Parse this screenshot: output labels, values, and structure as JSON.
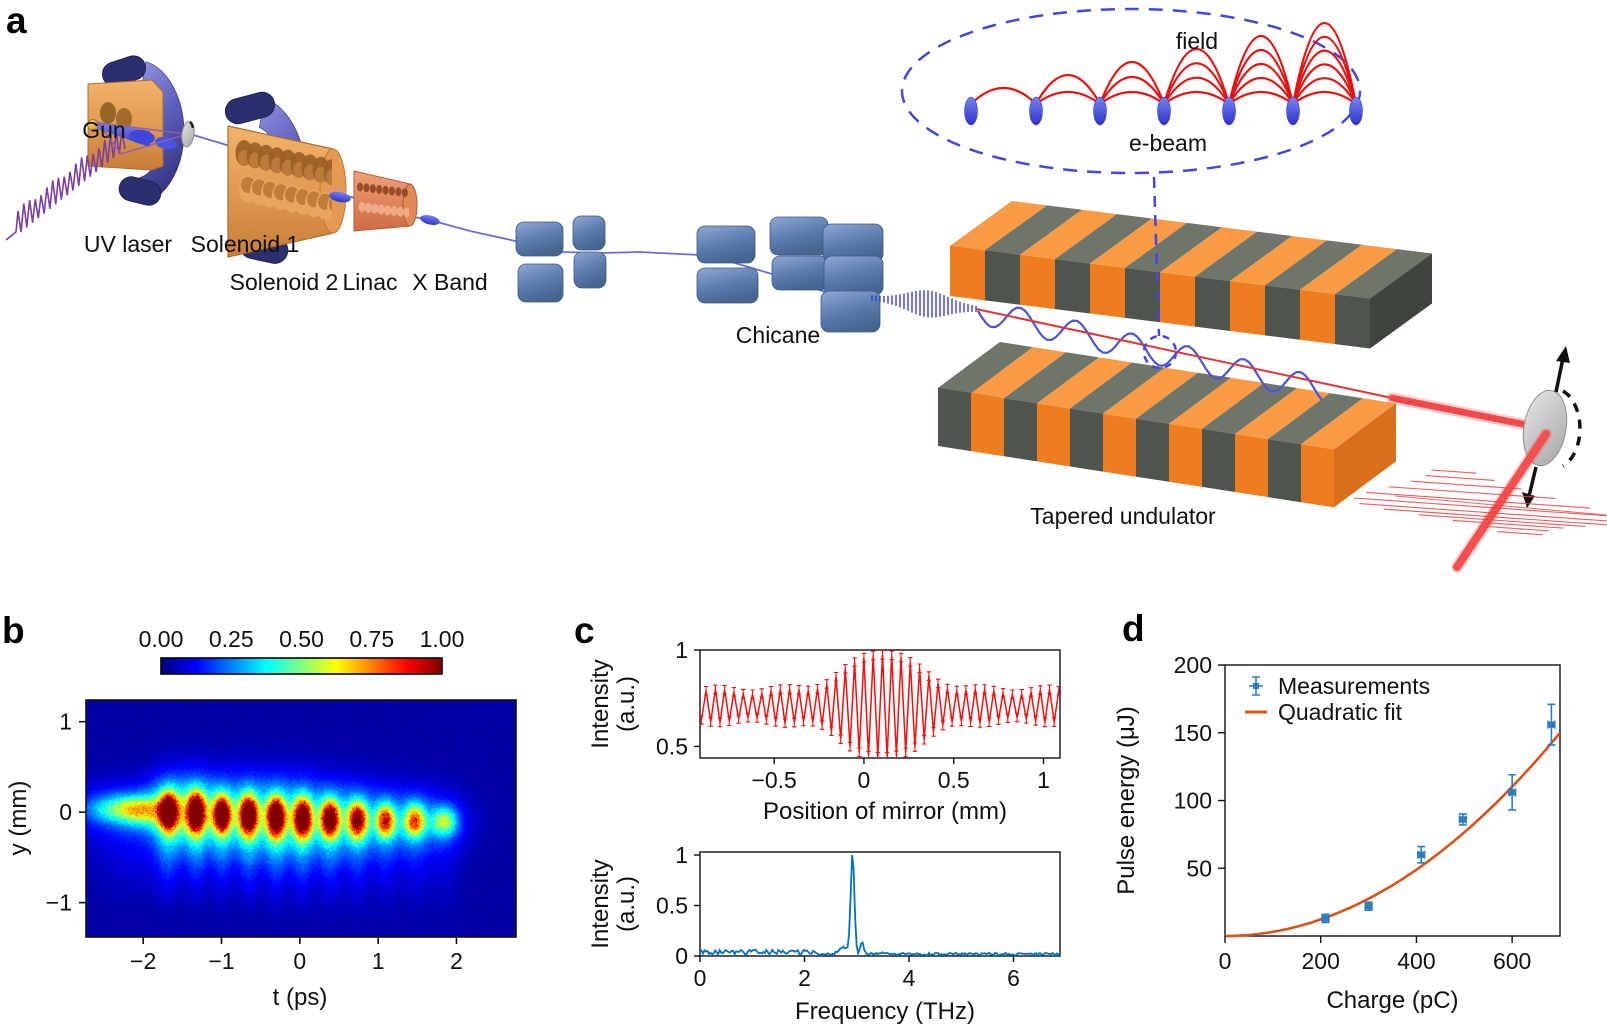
{
  "panel_letters": {
    "a": "a",
    "b": "b",
    "c": "c",
    "d": "d"
  },
  "panel_a": {
    "labels": {
      "gun": "Gun",
      "uv_laser": "UV laser",
      "solenoid_1": "Solenoid 1",
      "solenoid_2": "Solenoid 2",
      "linac": "Linac",
      "x_band": "X Band",
      "chicane": "Chicane",
      "tapered_undulator": "Tapered undulator",
      "field": "field",
      "e_beam": "e-beam"
    },
    "colors": {
      "copper": "#E19A52",
      "copper_dark": "#B06A28",
      "salmon": "#E08858",
      "solenoid_blue": "#6A6DCC",
      "navy": "#2C2F6E",
      "chicane_blue": "#6585B5",
      "undulator_orange": "#EE7D20",
      "undulator_gray": "#4E554C",
      "beam_blue": "#3A44D0",
      "uv_purple": "#7B3FA0",
      "radiation_red": "#E83030",
      "mirror_gray": "#C9C9C9",
      "inset_dash_blue": "#4646E0",
      "gold": "#F0A820"
    }
  },
  "chart_data": [
    {
      "panel": "b",
      "type": "heatmap",
      "colormap": "jet",
      "colorbar_tick_labels": [
        "0.00",
        "0.25",
        "0.50",
        "0.75",
        "1.00"
      ],
      "colorbar_ticks": [
        0,
        0.25,
        0.5,
        0.75,
        1.0
      ],
      "xlabel": "t (ps)",
      "ylabel": "y (mm)",
      "x_ticks": [
        -2,
        -1,
        0,
        1,
        2
      ],
      "x_tick_labels": [
        "−2",
        "−1",
        "0",
        "1",
        "2"
      ],
      "y_ticks": [
        1,
        0,
        -1
      ],
      "y_tick_labels": [
        "1",
        "0",
        "−1"
      ],
      "x_range": [
        -2.73,
        2.76
      ],
      "y_range": [
        -1.38,
        1.24
      ],
      "background_level": 0.035,
      "spots": [
        {
          "t": -1.68,
          "y": 0.01,
          "amplitude": 0.95,
          "sigma_t": 0.075,
          "sigma_y": 0.13
        },
        {
          "t": -1.33,
          "y": 0.0,
          "amplitude": 1.0,
          "sigma_t": 0.075,
          "sigma_y": 0.14
        },
        {
          "t": -1.0,
          "y": -0.02,
          "amplitude": 0.95,
          "sigma_t": 0.07,
          "sigma_y": 0.13
        },
        {
          "t": -0.66,
          "y": -0.03,
          "amplitude": 1.0,
          "sigma_t": 0.075,
          "sigma_y": 0.14
        },
        {
          "t": -0.31,
          "y": -0.05,
          "amplitude": 1.0,
          "sigma_t": 0.075,
          "sigma_y": 0.14
        },
        {
          "t": 0.03,
          "y": -0.06,
          "amplitude": 0.95,
          "sigma_t": 0.075,
          "sigma_y": 0.14
        },
        {
          "t": 0.38,
          "y": -0.07,
          "amplitude": 0.9,
          "sigma_t": 0.075,
          "sigma_y": 0.13
        },
        {
          "t": 0.73,
          "y": -0.08,
          "amplitude": 0.78,
          "sigma_t": 0.08,
          "sigma_y": 0.13
        },
        {
          "t": 1.09,
          "y": -0.09,
          "amplitude": 0.62,
          "sigma_t": 0.08,
          "sigma_y": 0.12
        },
        {
          "t": 1.46,
          "y": -0.09,
          "amplitude": 0.55,
          "sigma_t": 0.09,
          "sigma_y": 0.12
        },
        {
          "t": 1.84,
          "y": -0.1,
          "amplitude": 0.38,
          "sigma_t": 0.11,
          "sigma_y": 0.11
        }
      ],
      "diffuse": [
        {
          "t": -2.25,
          "y": 0.04,
          "amplitude": 0.3,
          "sigma_t": 0.3,
          "sigma_y": 0.1
        },
        {
          "t": -2.0,
          "y": 0.02,
          "amplitude": 0.24,
          "sigma_t": 0.2,
          "sigma_y": 0.11
        }
      ]
    },
    {
      "panel": "c-top",
      "type": "line",
      "line_color": "#F01010",
      "xlabel": "Position of mirror (mm)",
      "ylabel_line1": "Intensity",
      "ylabel_line2": "(a.u.)",
      "x_ticks": [
        -0.5,
        0,
        0.5,
        1
      ],
      "x_tick_labels": [
        "−0.5",
        "0",
        "0.5",
        "1"
      ],
      "y_ticks": [
        0.5,
        1
      ],
      "y_tick_labels": [
        "0.5",
        "1"
      ],
      "x_range": [
        -0.913,
        1.092
      ],
      "y_range": [
        0.44,
        1.0
      ],
      "signal": {
        "mean": 0.71,
        "period_mm": 0.0517,
        "center_mm": 0.105,
        "envelope_base": 0.075,
        "envelope_peak": 0.21,
        "envelope_sigma": 0.26,
        "error_bar": 0.022,
        "n_points": 78
      }
    },
    {
      "panel": "c-bottom",
      "type": "line",
      "line_color": "#0072BD",
      "xlabel": "Frequency (THz)",
      "ylabel_line1": "Intensity",
      "ylabel_line2": "(a.u.)",
      "x_ticks": [
        0,
        2,
        4,
        6
      ],
      "x_tick_labels": [
        "0",
        "2",
        "4",
        "6"
      ],
      "y_ticks": [
        0,
        0.5,
        1
      ],
      "y_tick_labels": [
        "0",
        "0.5",
        "1"
      ],
      "x_range": [
        0,
        6.89
      ],
      "y_range": [
        0,
        1.03
      ],
      "peak": {
        "freq": 2.92,
        "height": 1.0,
        "width": 0.05
      },
      "secondary_peak": {
        "freq": 3.1,
        "height": 0.12,
        "width": 0.04
      },
      "shoulder": {
        "freq": 2.74,
        "height": 0.07,
        "width": 0.09
      },
      "noise_level": 0.03
    },
    {
      "panel": "d",
      "type": "scatter",
      "xlabel": "Charge (pC)",
      "ylabel": "Pulse energy (μJ)",
      "x_ticks": [
        0,
        200,
        400,
        600
      ],
      "x_tick_labels": [
        "0",
        "200",
        "400",
        "600"
      ],
      "y_ticks": [
        50,
        100,
        150,
        200
      ],
      "y_tick_labels": [
        "50",
        "100",
        "150",
        "200"
      ],
      "x_range": [
        0,
        700
      ],
      "y_range": [
        0,
        200
      ],
      "legend": [
        {
          "label": "Measurements",
          "marker_color": "#2E7EBF"
        },
        {
          "label": "Quadratic fit",
          "line_color": "#D95319"
        }
      ],
      "points": {
        "charge_pC": [
          210,
          300,
          410,
          497,
          600,
          682
        ],
        "energy_uJ": [
          13,
          22,
          60,
          86,
          106,
          156
        ],
        "yerr": [
          3,
          3,
          6,
          4,
          13,
          15
        ],
        "xerr": [
          7,
          7,
          7,
          7,
          7,
          7
        ]
      },
      "fit": {
        "type": "quadratic",
        "coeff": 0.000306
      }
    }
  ]
}
